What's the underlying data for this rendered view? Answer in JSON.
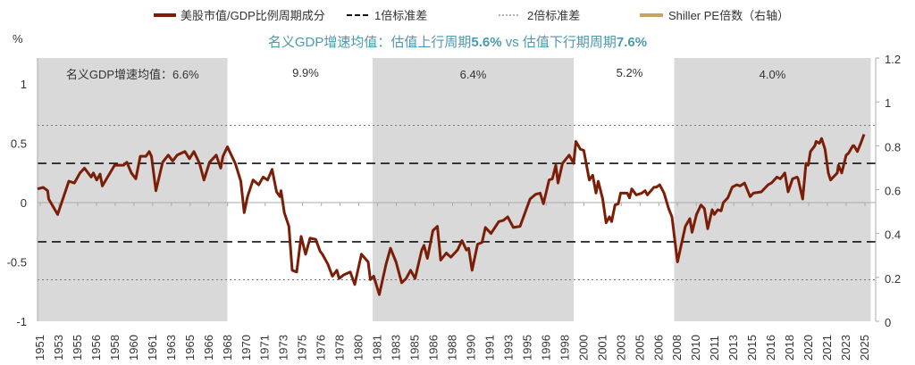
{
  "chart_data": {
    "type": "line",
    "title": "名义GDP增速均值：估值上行周期5.6% vs 估值下行期周期7.6%",
    "title_parts": [
      "名义GDP增速均值：估值上行周期",
      "5.6%",
      " vs 估值下行期周期",
      "7.6%"
    ],
    "title_color": "#4a9aae",
    "ylabel_left": "%",
    "ylim_left": [
      -1,
      1
    ],
    "yticks_left": [
      "1",
      "0.5",
      "0",
      "-0.5",
      "-1"
    ],
    "ylim_right": [
      0,
      1.2
    ],
    "yticks_right": [
      "1.2",
      "1",
      "0.8",
      "0.6",
      "0.4",
      "0.2",
      "0"
    ],
    "xtick_labels": [
      "1951",
      "1953",
      "1955",
      "1956",
      "1958",
      "1960",
      "1961",
      "1963",
      "1965",
      "1966",
      "1968",
      "1970",
      "1971",
      "1973",
      "1975",
      "1976",
      "1978",
      "1980",
      "1981",
      "1983",
      "1985",
      "1986",
      "1988",
      "1990",
      "1991",
      "1993",
      "1995",
      "1996",
      "1998",
      "2000",
      "2001",
      "2003",
      "2005",
      "2006",
      "2008",
      "2010",
      "2011",
      "2013",
      "2015",
      "2016",
      "2018",
      "2020",
      "2021",
      "2023",
      "2025"
    ],
    "legend_position": "top",
    "legend": [
      {
        "name": "美股市值/GDP比例周期成分",
        "style": "solid",
        "color": "#7b1e08"
      },
      {
        "name": "1倍标准差",
        "style": "dashed",
        "color": "#111111"
      },
      {
        "name": "2倍标准差",
        "style": "dotted",
        "color": "#666666"
      },
      {
        "name": "Shiller PE倍数（右轴）",
        "style": "solid",
        "color": "#c8a266"
      }
    ],
    "reference_lines": {
      "std1": [
        0.33,
        -0.33
      ],
      "std2": [
        0.65,
        -0.65
      ]
    },
    "shaded_periods": [
      {
        "start": 1951,
        "end": 1968,
        "label": "名义GDP增速均值：6.6%"
      },
      {
        "start": 1981,
        "end": 1999,
        "label": "6.4%"
      },
      {
        "start": 2008,
        "end": 2025.6,
        "label": "4.0%"
      }
    ],
    "unshaded_labels": [
      {
        "center": 1975,
        "label": "9.9%"
      },
      {
        "center": 2004,
        "label": "5.2%"
      }
    ],
    "shade_color": "#d9d9d9",
    "series": [
      {
        "name": "美股市值/GDP比例周期成分",
        "color": "#7b1e08",
        "x": [
          1951.0,
          1951.5,
          1951.9,
          1952.0,
          1952.8,
          1953.8,
          1954.3,
          1954.8,
          1955.2,
          1955.8,
          1956.0,
          1956.3,
          1956.6,
          1956.8,
          1957.9,
          1958.7,
          1959.0,
          1959.4,
          1959.8,
          1960.2,
          1960.7,
          1961.0,
          1961.2,
          1961.6,
          1962.2,
          1962.7,
          1963.1,
          1963.5,
          1964.2,
          1964.6,
          1965.0,
          1965.5,
          1965.9,
          1966.4,
          1967.0,
          1967.4,
          1967.6,
          1968.0,
          1968.4,
          1968.7,
          1969.2,
          1969.5,
          1969.8,
          1970.3,
          1970.8,
          1971.2,
          1971.6,
          1972.0,
          1972.4,
          1972.7,
          1972.8,
          1973.1,
          1973.5,
          1973.8,
          1974.2,
          1974.6,
          1975.0,
          1975.4,
          1975.9,
          1976.3,
          1976.5,
          1977.0,
          1977.4,
          1977.8,
          1978.0,
          1978.4,
          1979.0,
          1979.4,
          1980.0,
          1980.6,
          1980.8,
          1981.1,
          1981.6,
          1982.2,
          1982.6,
          1983.1,
          1983.6,
          1984.0,
          1984.4,
          1984.8,
          1985.4,
          1985.6,
          1985.9,
          1986.4,
          1986.8,
          1987.1,
          1987.6,
          1988.0,
          1988.6,
          1989.0,
          1989.4,
          1989.6,
          1989.9,
          1990.4,
          1990.8,
          1991.1,
          1991.6,
          1992.3,
          1992.7,
          1993.1,
          1993.6,
          1994.2,
          1995.1,
          1995.6,
          1996.0,
          1996.3,
          1996.8,
          1997.1,
          1997.4,
          1997.6,
          1998.0,
          1998.6,
          1999.0,
          1999.2,
          1999.6,
          1999.9,
          2000.4,
          2000.7,
          2001.0,
          2001.2,
          2001.6,
          2001.9,
          2002.2,
          2002.4,
          2002.7,
          2003.0,
          2003.2,
          2003.8,
          2004.0,
          2004.2,
          2004.6,
          2005.1,
          2005.4,
          2005.6,
          2006.2,
          2006.4,
          2006.7,
          2007.1,
          2007.5,
          2007.8,
          2008.3,
          2009.0,
          2009.4,
          2009.6,
          2010.0,
          2010.4,
          2010.7,
          2011.0,
          2011.4,
          2011.6,
          2011.9,
          2012.2,
          2012.4,
          2012.8,
          2013.2,
          2013.6,
          2013.9,
          2014.3,
          2014.8,
          2015.1,
          2015.8,
          2016.4,
          2016.7,
          2017.2,
          2017.5,
          2017.9,
          2018.2,
          2018.6,
          2019.0,
          2019.1,
          2019.5,
          2019.8,
          2020.0,
          2020.2,
          2020.6,
          2020.7,
          2021.0,
          2021.2,
          2021.5,
          2021.8,
          2022.0,
          2022.6,
          2022.7,
          2023.0,
          2023.4,
          2023.6,
          2024.0,
          2024.1,
          2024.4,
          2024.7,
          2025.0
        ],
        "values": [
          0.115,
          0.128,
          0.1,
          0.03,
          -0.1,
          0.18,
          0.165,
          0.25,
          0.29,
          0.215,
          0.25,
          0.19,
          0.24,
          0.14,
          0.315,
          0.315,
          0.34,
          0.25,
          0.2,
          0.39,
          0.39,
          0.43,
          0.39,
          0.1,
          0.34,
          0.4,
          0.35,
          0.4,
          0.43,
          0.37,
          0.43,
          0.33,
          0.19,
          0.34,
          0.4,
          0.29,
          0.39,
          0.47,
          0.39,
          0.33,
          0.18,
          -0.085,
          0.05,
          0.19,
          0.15,
          0.215,
          0.19,
          0.28,
          0.09,
          0.05,
          0.1,
          -0.085,
          -0.2,
          -0.57,
          -0.585,
          -0.285,
          -0.435,
          -0.3,
          -0.31,
          -0.41,
          -0.435,
          -0.52,
          -0.62,
          -0.57,
          -0.64,
          -0.61,
          -0.585,
          -0.69,
          -0.435,
          -0.5,
          -0.65,
          -0.62,
          -0.775,
          -0.52,
          -0.385,
          -0.5,
          -0.675,
          -0.64,
          -0.57,
          -0.64,
          -0.4,
          -0.36,
          -0.47,
          -0.235,
          -0.2,
          -0.485,
          -0.425,
          -0.46,
          -0.4,
          -0.32,
          -0.4,
          -0.385,
          -0.57,
          -0.35,
          -0.335,
          -0.21,
          -0.26,
          -0.16,
          -0.15,
          -0.12,
          -0.21,
          -0.2,
          0.03,
          0.07,
          0.08,
          -0.01,
          0.19,
          0.2,
          0.315,
          0.165,
          0.33,
          0.4,
          0.33,
          0.515,
          0.45,
          0.44,
          0.19,
          0.23,
          0.08,
          0.18,
          0.03,
          -0.17,
          -0.12,
          -0.16,
          -0.02,
          -0.01,
          0.08,
          0.08,
          0.04,
          0.115,
          0.065,
          0.08,
          0.1,
          0.065,
          0.13,
          0.13,
          0.15,
          0.08,
          -0.05,
          -0.12,
          -0.5,
          -0.2,
          -0.135,
          -0.25,
          -0.1,
          -0.02,
          -0.05,
          -0.22,
          -0.06,
          -0.1,
          -0.06,
          -0.07,
          0.0,
          0.04,
          0.13,
          0.15,
          0.14,
          0.165,
          0.05,
          0.08,
          0.09,
          0.15,
          0.165,
          0.215,
          0.2,
          0.25,
          0.09,
          0.2,
          0.215,
          0.2,
          0.03,
          0.33,
          0.315,
          0.43,
          0.48,
          0.515,
          0.5,
          0.54,
          0.45,
          0.25,
          0.19,
          0.25,
          0.315,
          0.25,
          0.4,
          0.415,
          0.48,
          0.48,
          0.43,
          0.5,
          0.575
        ]
      }
    ]
  }
}
